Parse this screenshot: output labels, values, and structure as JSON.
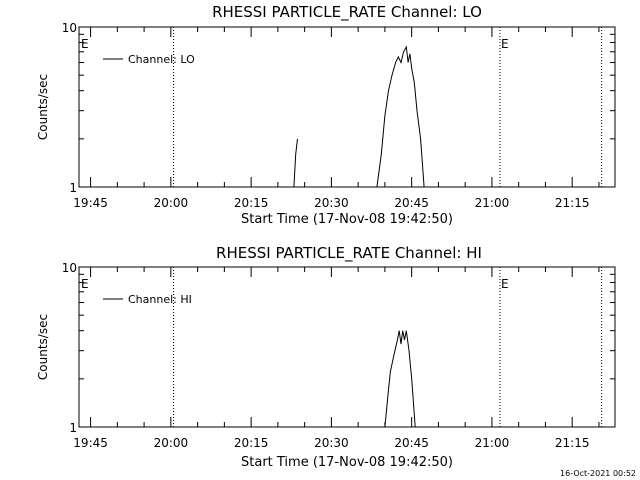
{
  "footer": {
    "timestamp": "16-Oct-2021 00:52"
  },
  "colors": {
    "background": "#ffffff",
    "foreground": "#000000"
  },
  "chart_data": [
    {
      "type": "line",
      "title": "RHESSI PARTICLE_RATE Channel: LO",
      "xlabel": "Start Time (17-Nov-08 19:42:50)",
      "ylabel": "Counts/sec",
      "y_scale": "log",
      "ylim": [
        1,
        10
      ],
      "y_ticks": [
        {
          "value": 1,
          "label": "1"
        },
        {
          "value": 10,
          "label": "10"
        }
      ],
      "xlim": [
        "19:42:50",
        "21:23:00"
      ],
      "x_ticks": [
        "19:45",
        "20:00",
        "20:15",
        "20:30",
        "20:45",
        "21:00",
        "21:15"
      ],
      "grid": false,
      "legend": {
        "entries": [
          "Channel: LO"
        ],
        "placement": "top-left"
      },
      "markers": [
        {
          "time": "20:00:30",
          "label": ""
        },
        {
          "time": "21:01:30",
          "label": "E"
        },
        {
          "time": "21:20:30",
          "label": ""
        }
      ],
      "edge_label": "E",
      "series": [
        {
          "name": "Channel: LO",
          "segments": [
            [
              {
                "x": "20:23:00",
                "y": 1.0
              },
              {
                "x": "20:23:20",
                "y": 1.6
              },
              {
                "x": "20:23:40",
                "y": 2.0
              }
            ],
            [
              {
                "x": "20:38:30",
                "y": 1.0
              },
              {
                "x": "20:39:20",
                "y": 1.6
              },
              {
                "x": "20:40:00",
                "y": 2.8
              },
              {
                "x": "20:40:40",
                "y": 4.0
              },
              {
                "x": "20:41:20",
                "y": 5.0
              },
              {
                "x": "20:42:00",
                "y": 6.0
              },
              {
                "x": "20:42:30",
                "y": 6.5
              },
              {
                "x": "20:43:00",
                "y": 6.0
              },
              {
                "x": "20:43:30",
                "y": 7.0
              },
              {
                "x": "20:44:00",
                "y": 7.5
              },
              {
                "x": "20:44:20",
                "y": 6.0
              },
              {
                "x": "20:44:40",
                "y": 6.8
              },
              {
                "x": "20:45:00",
                "y": 5.5
              },
              {
                "x": "20:45:30",
                "y": 4.5
              },
              {
                "x": "20:46:00",
                "y": 3.0
              },
              {
                "x": "20:46:40",
                "y": 2.0
              },
              {
                "x": "20:47:20",
                "y": 1.0
              }
            ]
          ]
        }
      ]
    },
    {
      "type": "line",
      "title": "RHESSI PARTICLE_RATE Channel: HI",
      "xlabel": "Start Time (17-Nov-08 19:42:50)",
      "ylabel": "Counts/sec",
      "y_scale": "log",
      "ylim": [
        1,
        10
      ],
      "y_ticks": [
        {
          "value": 1,
          "label": "1"
        },
        {
          "value": 10,
          "label": "10"
        }
      ],
      "xlim": [
        "19:42:50",
        "21:23:00"
      ],
      "x_ticks": [
        "19:45",
        "20:00",
        "20:15",
        "20:30",
        "20:45",
        "21:00",
        "21:15"
      ],
      "grid": false,
      "legend": {
        "entries": [
          "Channel: HI"
        ],
        "placement": "top-left"
      },
      "markers": [
        {
          "time": "20:00:30",
          "label": ""
        },
        {
          "time": "21:01:30",
          "label": "E"
        },
        {
          "time": "21:20:30",
          "label": ""
        }
      ],
      "edge_label": "E",
      "series": [
        {
          "name": "Channel: HI",
          "segments": [
            [
              {
                "x": "20:40:00",
                "y": 1.0
              },
              {
                "x": "20:40:30",
                "y": 1.5
              },
              {
                "x": "20:41:00",
                "y": 2.2
              },
              {
                "x": "20:41:40",
                "y": 2.8
              },
              {
                "x": "20:42:20",
                "y": 3.5
              },
              {
                "x": "20:42:40",
                "y": 4.0
              },
              {
                "x": "20:43:00",
                "y": 3.3
              },
              {
                "x": "20:43:20",
                "y": 4.0
              },
              {
                "x": "20:43:40",
                "y": 3.5
              },
              {
                "x": "20:44:00",
                "y": 4.0
              },
              {
                "x": "20:44:30",
                "y": 3.0
              },
              {
                "x": "20:45:00",
                "y": 2.0
              },
              {
                "x": "20:45:40",
                "y": 1.0
              }
            ]
          ]
        }
      ]
    }
  ]
}
